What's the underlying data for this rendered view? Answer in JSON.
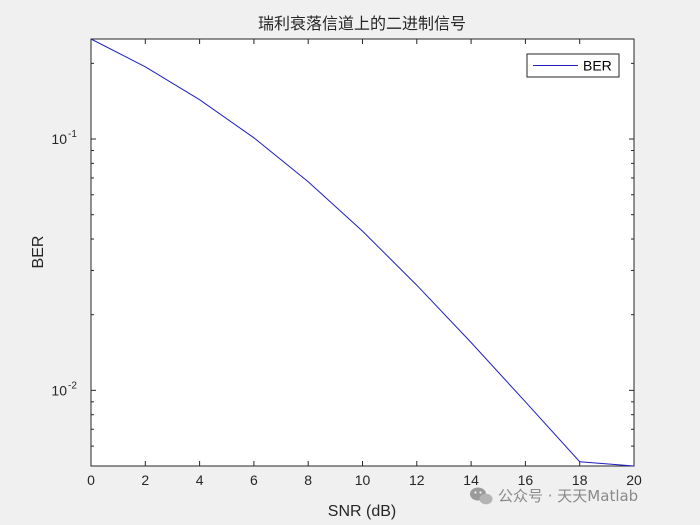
{
  "chart_data": {
    "type": "line",
    "title": "瑞利衰落信道上的二进制信号",
    "xlabel": "SNR (dB)",
    "ylabel": "BER",
    "xlim": [
      0,
      20
    ],
    "ylim": [
      0.005,
      0.25
    ],
    "yscale": "log",
    "grid": false,
    "legend_position": "top-right",
    "x_ticks": [
      0,
      2,
      4,
      6,
      8,
      10,
      12,
      14,
      16,
      18,
      20
    ],
    "y_ticks": [
      {
        "base": "10",
        "exp": "-1",
        "value": 0.1
      },
      {
        "base": "10",
        "exp": "-2",
        "value": 0.01
      }
    ],
    "series": [
      {
        "name": "BER",
        "color": "#1f1fbf",
        "x": [
          0,
          2,
          4,
          6,
          8,
          10,
          12,
          14,
          16,
          18,
          20
        ],
        "y": [
          0.25,
          0.1937,
          0.1434,
          0.1011,
          0.0676,
          0.043,
          0.0262,
          0.0155,
          0.009,
          0.0052,
          0.005
        ]
      }
    ]
  },
  "watermark": {
    "icon": "wechat-icon",
    "text": "公众号 · 天天Matlab"
  }
}
